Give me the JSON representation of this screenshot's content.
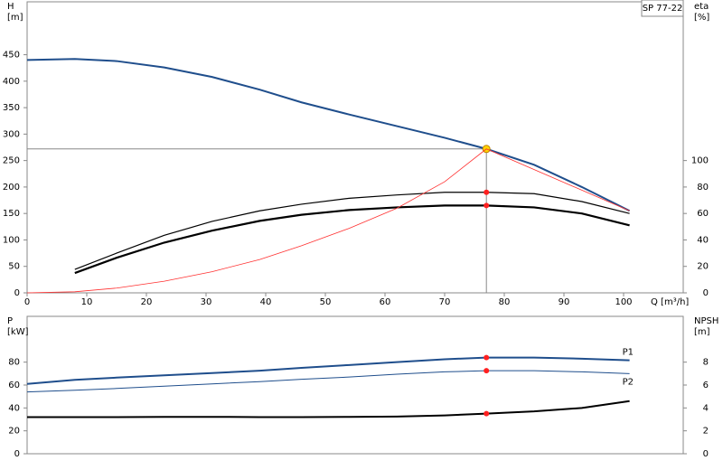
{
  "chart_data": [
    {
      "type": "line",
      "ylabel": "H",
      "yunit": "[m]",
      "y2label": "eta",
      "y2unit": "[%]",
      "xlabel": "Q [m³/h]",
      "legend_box": "SP 77-22",
      "xlim": [
        0,
        110
      ],
      "xticks": [
        0,
        10,
        20,
        30,
        40,
        50,
        60,
        70,
        80,
        90,
        100
      ],
      "ylim": [
        0,
        550
      ],
      "yticks": [
        0,
        50,
        100,
        150,
        200,
        250,
        300,
        350,
        400,
        450
      ],
      "y2lim": [
        0,
        220
      ],
      "y2ticks": [
        0,
        20,
        40,
        60,
        80,
        100
      ],
      "x": [
        0,
        8,
        15,
        23,
        31,
        39,
        46,
        54,
        62,
        70,
        77,
        85,
        93,
        101
      ],
      "duty_point": {
        "x": 77,
        "y": 272
      },
      "series": [
        {
          "color": "#1f4e8c",
          "stroke_width": 2,
          "values": [
            440,
            442,
            438,
            426,
            408,
            384,
            360,
            337,
            315,
            293,
            272,
            242,
            200,
            155
          ]
        },
        {
          "color": "#000000",
          "stroke_width": 1.2,
          "axis": "y2",
          "values": [
            null,
            17.7,
            30,
            43.5,
            54,
            62,
            67,
            71.5,
            74,
            76,
            76,
            75,
            69,
            60
          ]
        },
        {
          "color": "#000000",
          "stroke_width": 2.2,
          "axis": "y2",
          "values": [
            null,
            15,
            26.5,
            38,
            47,
            54.4,
            59,
            62.6,
            64.6,
            66,
            66,
            64.6,
            60,
            51
          ]
        },
        {
          "color": "#ff3030",
          "stroke_width": 0.8,
          "x": [
            0,
            8,
            15,
            23,
            31,
            39,
            46,
            54,
            62,
            70,
            77,
            101
          ],
          "values": [
            0,
            2,
            9,
            22,
            40,
            63,
            89,
            122,
            160,
            210,
            272,
            155
          ]
        }
      ]
    },
    {
      "type": "line",
      "ylabel": "P",
      "yunit": "[kW]",
      "y2label": "NPSH",
      "y2unit": "[m]",
      "xlim": [
        0,
        110
      ],
      "ylim": [
        0,
        120
      ],
      "yticks": [
        0,
        20,
        40,
        60,
        80
      ],
      "y2lim": [
        0,
        12
      ],
      "y2ticks": [
        0,
        2,
        4,
        6,
        8
      ],
      "x": [
        0,
        8,
        15,
        23,
        31,
        39,
        46,
        54,
        62,
        70,
        77,
        85,
        93,
        101
      ],
      "duty_x": 77,
      "series": [
        {
          "name": "P1",
          "color": "#1f4e8c",
          "stroke_width": 2,
          "values": [
            61,
            64.5,
            66.5,
            68.5,
            70.5,
            72.5,
            75,
            77.5,
            80,
            82.5,
            84,
            84,
            83,
            81.6
          ]
        },
        {
          "name": "P2",
          "color": "#1f4e8c",
          "stroke_width": 1,
          "values": [
            54,
            55.5,
            57,
            59,
            61,
            63,
            65,
            67,
            69.5,
            71.5,
            72.5,
            72.5,
            71.5,
            70
          ]
        },
        {
          "color": "#000000",
          "stroke_width": 2,
          "axis": "y2",
          "values": [
            3.2,
            3.2,
            3.2,
            3.22,
            3.22,
            3.2,
            3.2,
            3.22,
            3.25,
            3.35,
            3.5,
            3.7,
            4.0,
            4.6
          ]
        }
      ]
    }
  ]
}
